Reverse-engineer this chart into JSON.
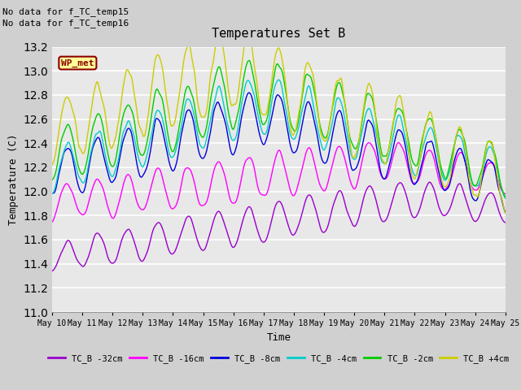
{
  "title": "Temperatures Set B",
  "xlabel": "Time",
  "ylabel": "Temperature (C)",
  "ylim": [
    11.0,
    13.2
  ],
  "yticks": [
    11.0,
    11.2,
    11.4,
    11.6,
    11.8,
    12.0,
    12.2,
    12.4,
    12.6,
    12.8,
    13.0,
    13.2
  ],
  "fig_bg": "#d0d0d0",
  "plot_bg": "#e8e8e8",
  "grid_color": "#ffffff",
  "annotations": [
    "No data for f_TC_temp15",
    "No data for f_TC_temp16"
  ],
  "wp_met_label": "WP_met",
  "series": [
    {
      "label": "TC_B -32cm",
      "color": "#9900cc",
      "lw": 1.0
    },
    {
      "label": "TC_B -16cm",
      "color": "#ff00ff",
      "lw": 1.0
    },
    {
      "label": "TC_B -8cm",
      "color": "#0000dd",
      "lw": 1.0
    },
    {
      "label": "TC_B -4cm",
      "color": "#00cccc",
      "lw": 1.0
    },
    {
      "label": "TC_B -2cm",
      "color": "#00cc00",
      "lw": 1.0
    },
    {
      "label": "TC_B +4cm",
      "color": "#cccc00",
      "lw": 1.0
    }
  ],
  "xtick_labels": [
    "May 10",
    "May 11",
    "May 12",
    "May 13",
    "May 14",
    "May 15",
    "May 16",
    "May 17",
    "May 18",
    "May 19",
    "May 20",
    "May 21",
    "May 22",
    "May 23",
    "May 24",
    "May 25"
  ]
}
